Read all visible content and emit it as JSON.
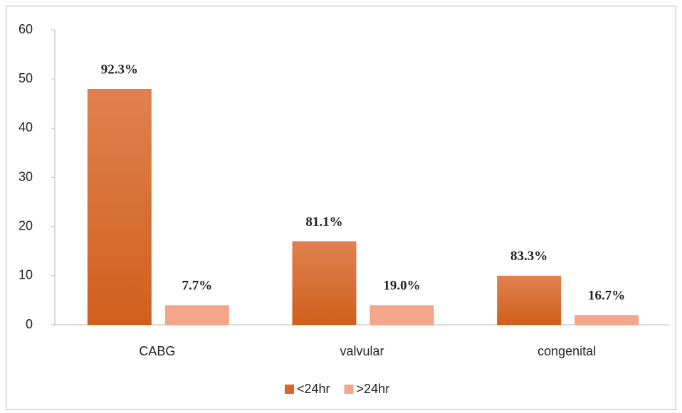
{
  "chart_data": {
    "type": "bar",
    "categories": [
      "CABG",
      "valvular",
      "congenital"
    ],
    "series": [
      {
        "name": "<24hr",
        "color": "#d9662a",
        "values": [
          48,
          17,
          10
        ],
        "annotations": [
          "92.3%",
          "81.1%",
          "83.3%"
        ]
      },
      {
        "name": ">24hr",
        "color": "#f4a68a",
        "values": [
          4,
          4,
          2
        ],
        "annotations": [
          "7.7%",
          "19.0%",
          "16.7%"
        ]
      }
    ],
    "ylim": [
      0,
      60
    ],
    "yticks": [
      0,
      10,
      20,
      30,
      40,
      50,
      60
    ],
    "grid": false,
    "legend": "bottom"
  }
}
